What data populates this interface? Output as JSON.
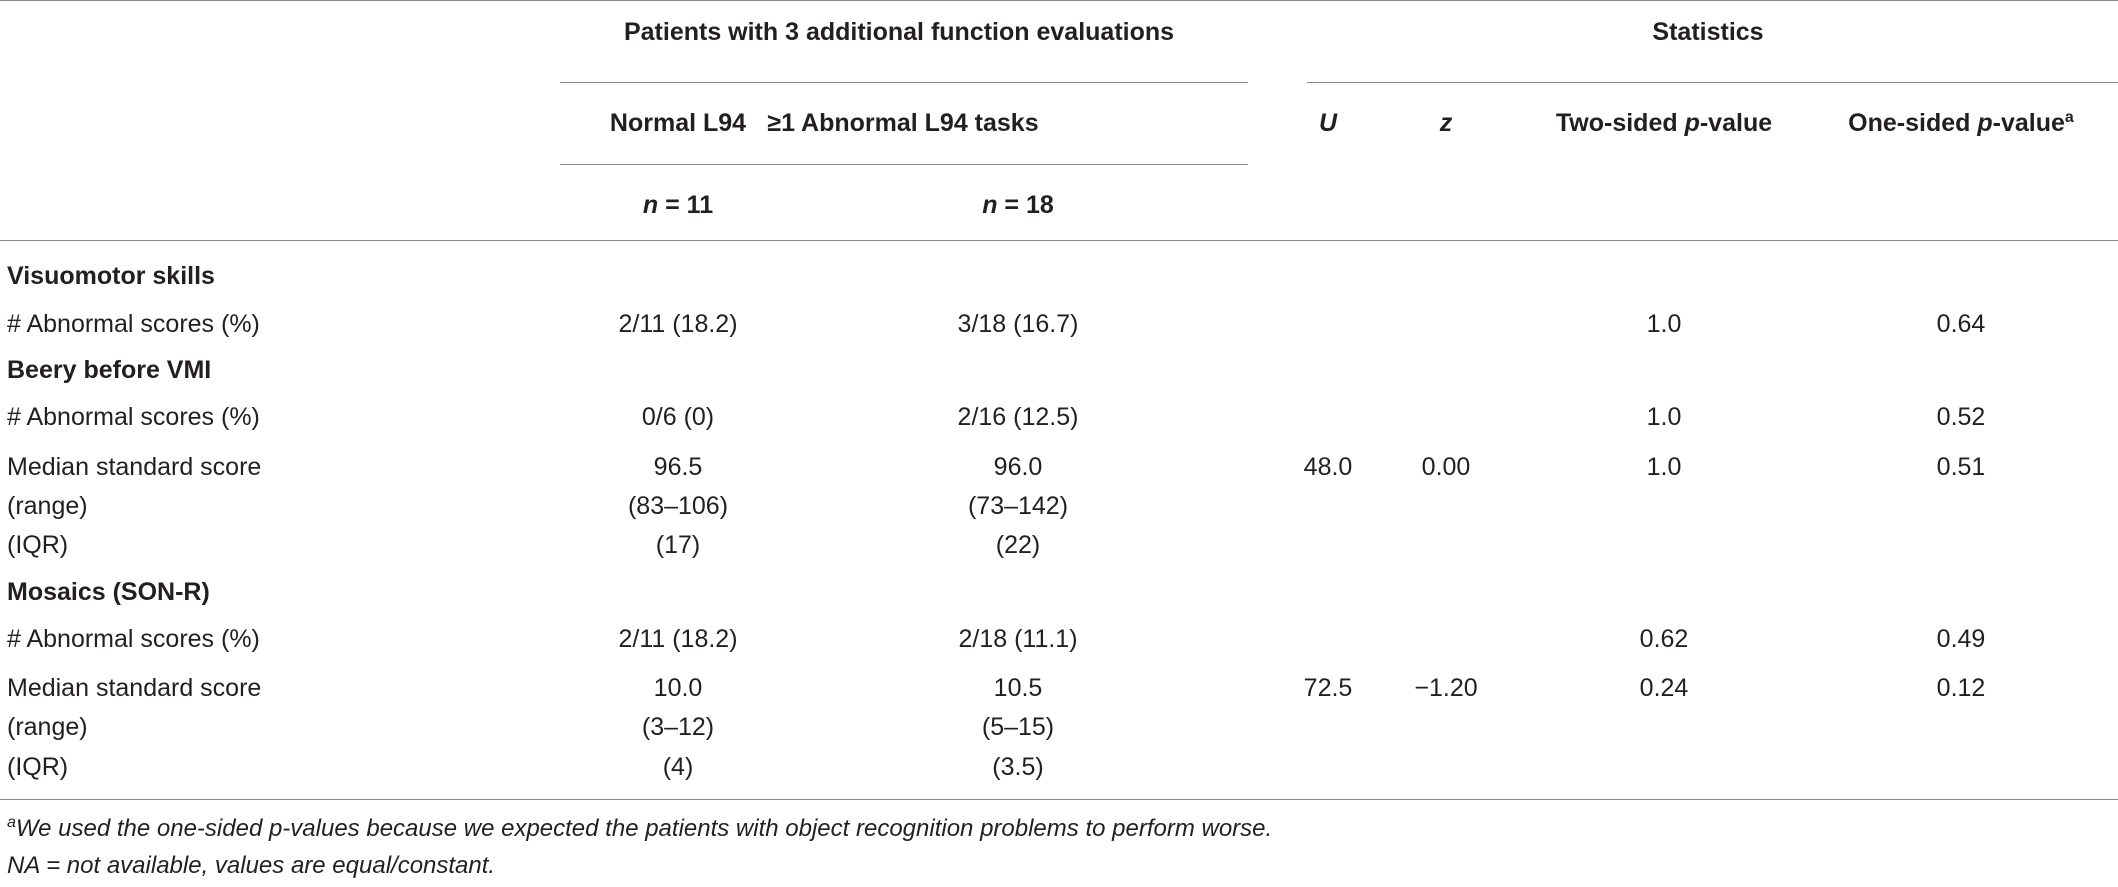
{
  "header": {
    "group1_title": "Patients with 3 additional function evaluations",
    "group2_title": "Statistics",
    "col_normal": "Normal L94",
    "col_abnormal": "≥1 Abnormal L94 tasks",
    "n_normal_label": "n",
    "n_normal_value": " = 11",
    "n_abnormal_label": "n",
    "n_abnormal_value": " = 18",
    "col_u": "U",
    "col_z": "z",
    "col_two_sided_pre": "Two-sided ",
    "col_two_sided_p": "p",
    "col_two_sided_post": "-value",
    "col_one_sided_pre": "One-sided ",
    "col_one_sided_p": "p",
    "col_one_sided_post": "-value",
    "col_one_sided_sup": "a"
  },
  "sections": [
    {
      "title": "Visuomotor skills",
      "rows": [
        {
          "label": "# Abnormal scores (%)",
          "normal": "2/11 (18.2)",
          "abnormal": "3/18 (16.7)",
          "u": "",
          "z": "",
          "two_sided": "1.0",
          "one_sided": "0.64"
        }
      ]
    },
    {
      "title": "Beery before VMI",
      "rows": [
        {
          "label": "# Abnormal scores (%)",
          "normal": "0/6 (0)",
          "abnormal": "2/16 (12.5)",
          "u": "",
          "z": "",
          "two_sided": "1.0",
          "one_sided": "0.52"
        },
        {
          "label": "Median standard score",
          "normal": "96.5",
          "abnormal": "96.0",
          "u": "48.0",
          "z": "0.00",
          "two_sided": "1.0",
          "one_sided": "0.51"
        },
        {
          "label": "(range)",
          "normal": "(83–106)",
          "abnormal": "(73–142)",
          "u": "",
          "z": "",
          "two_sided": "",
          "one_sided": ""
        },
        {
          "label": "(IQR)",
          "normal": "(17)",
          "abnormal": "(22)",
          "u": "",
          "z": "",
          "two_sided": "",
          "one_sided": ""
        }
      ]
    },
    {
      "title": "Mosaics (SON-R)",
      "rows": [
        {
          "label": "# Abnormal scores (%)",
          "normal": "2/11 (18.2)",
          "abnormal": "2/18 (11.1)",
          "u": "",
          "z": "",
          "two_sided": "0.62",
          "one_sided": "0.49"
        },
        {
          "label": "Median standard score",
          "normal": "10.0",
          "abnormal": "10.5",
          "u": "72.5",
          "z": "−1.20",
          "two_sided": "0.24",
          "one_sided": "0.12"
        },
        {
          "label": "(range)",
          "normal": "(3–12)",
          "abnormal": "(5–15)",
          "u": "",
          "z": "",
          "two_sided": "",
          "one_sided": ""
        },
        {
          "label": "(IQR)",
          "normal": "(4)",
          "abnormal": "(3.5)",
          "u": "",
          "z": "",
          "two_sided": "",
          "one_sided": ""
        }
      ]
    }
  ],
  "footnotes": {
    "a_sup": "a",
    "a_text": "We used the one-sided p-values because we expected the patients with object recognition problems to perform worse.",
    "na_text": "NA = not available, values are equal/constant."
  }
}
